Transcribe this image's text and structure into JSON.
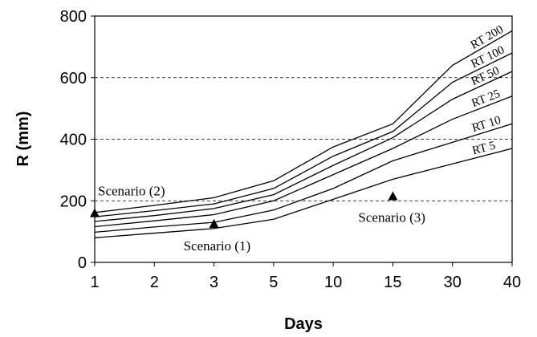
{
  "chart_data": {
    "type": "line",
    "xlabel": "Days",
    "ylabel": "R (mm)",
    "categories": [
      "1",
      "2",
      "3",
      "5",
      "10",
      "15",
      "30",
      "40"
    ],
    "ylim": [
      0,
      800
    ],
    "yticks": [
      "0",
      "200",
      "400",
      "600",
      "800"
    ],
    "grid": "horizontal dashed lines at 200, 400, 600",
    "series": [
      {
        "name": "RT 5",
        "values": [
          80,
          95,
          110,
          140,
          205,
          270,
          320,
          370
        ]
      },
      {
        "name": "RT 10",
        "values": [
          98,
          115,
          130,
          170,
          240,
          330,
          390,
          450
        ]
      },
      {
        "name": "RT 25",
        "values": [
          116,
          135,
          155,
          200,
          285,
          370,
          465,
          540
        ]
      },
      {
        "name": "RT 50",
        "values": [
          133,
          152,
          175,
          220,
          315,
          405,
          530,
          620
        ]
      },
      {
        "name": "RT 100",
        "values": [
          148,
          168,
          190,
          240,
          345,
          425,
          585,
          680
        ]
      },
      {
        "name": "RT 200",
        "values": [
          162,
          185,
          210,
          265,
          375,
          450,
          640,
          752
        ]
      }
    ],
    "annotations": [
      {
        "text": "Scenario (1)",
        "x": "3",
        "y": 125
      },
      {
        "text": "Scenario (2)",
        "x": "1",
        "y": 160
      },
      {
        "text": "Scenario (3)",
        "x": "15",
        "y": 215
      }
    ]
  }
}
